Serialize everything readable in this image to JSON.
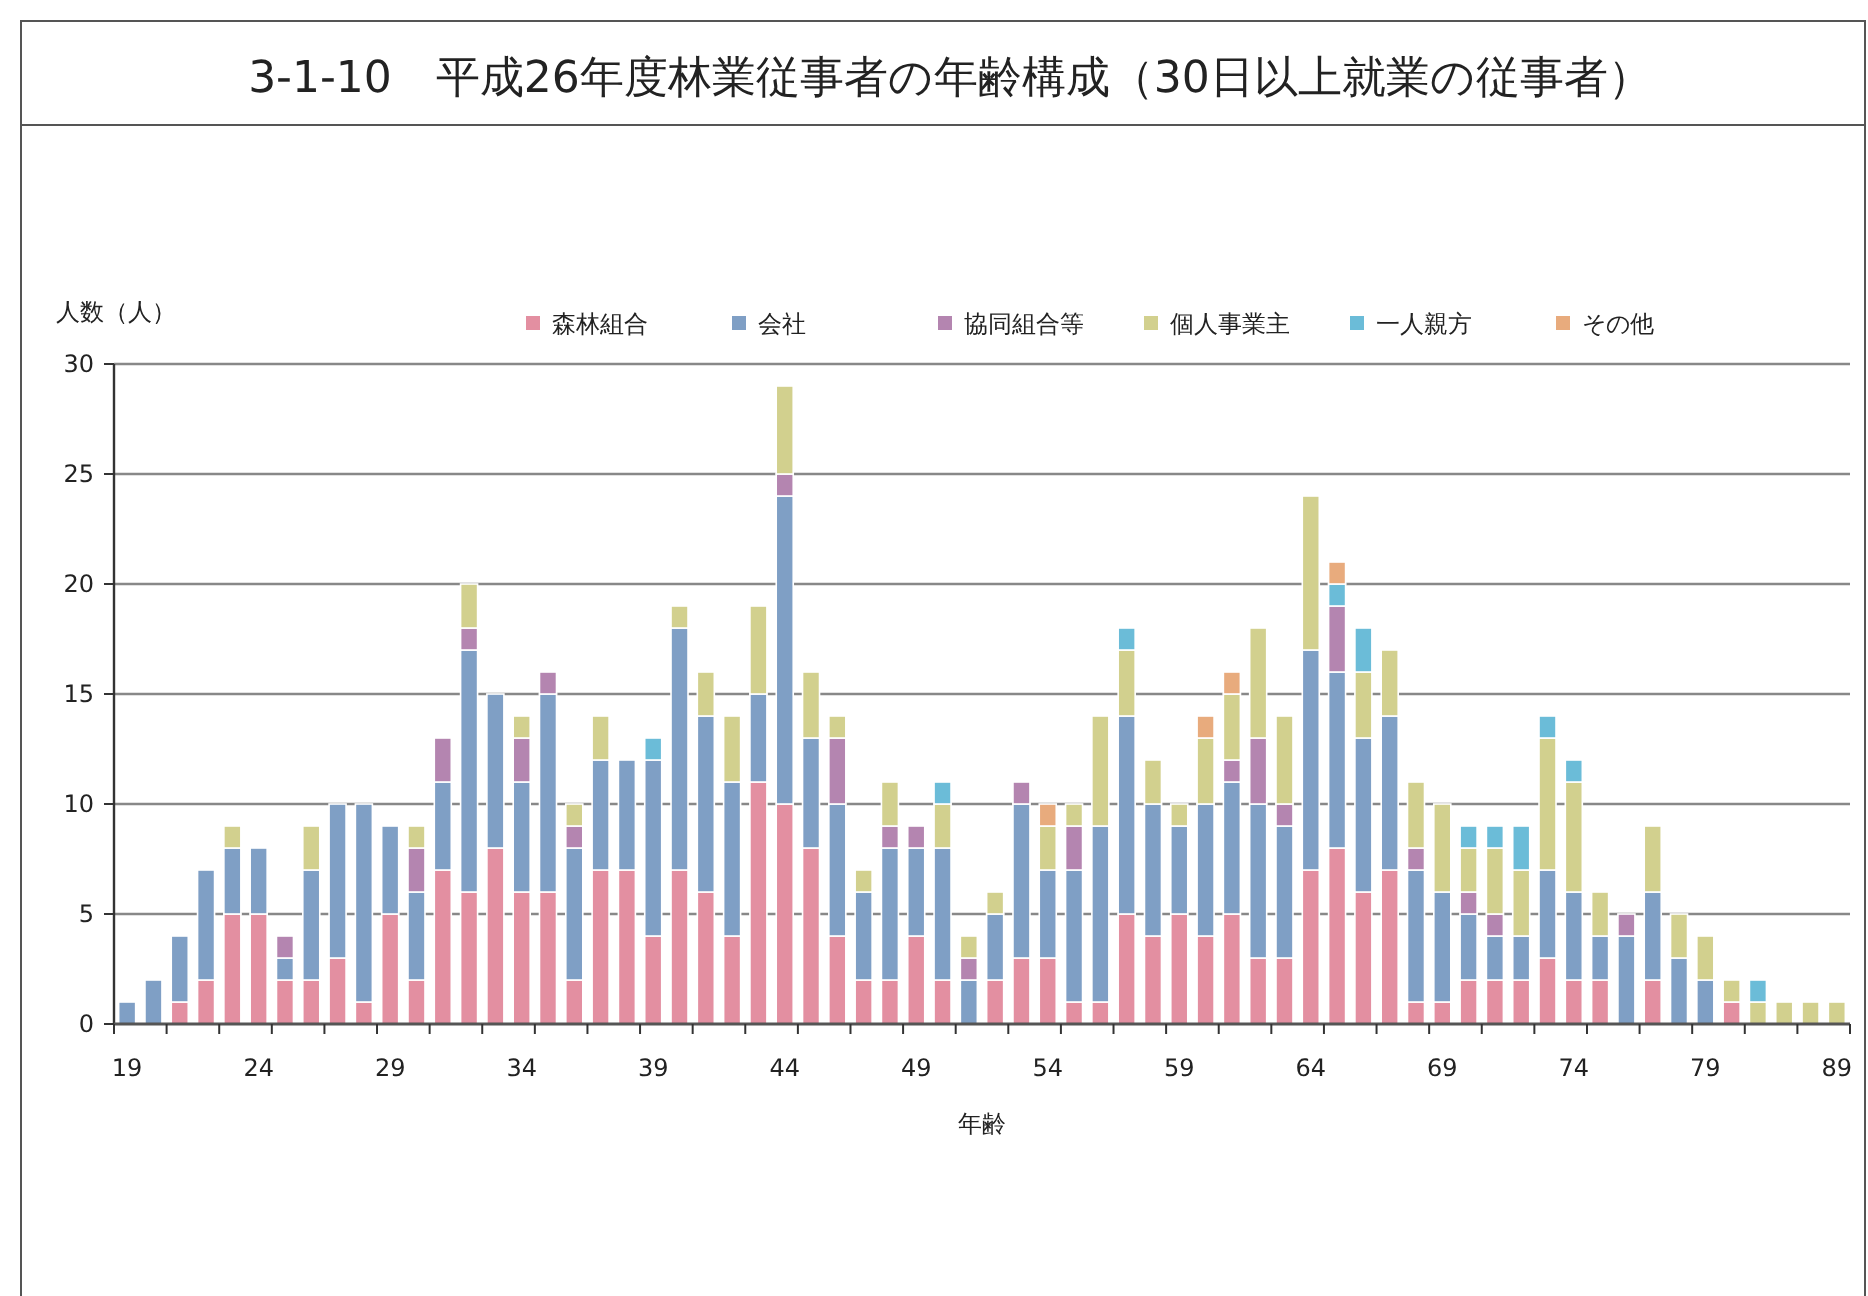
{
  "chart_data": {
    "type": "bar",
    "stacked": true,
    "title": "3-1-10　平成26年度林業従事者の年齢構成（30日以上就業の従事者）",
    "ylabel": "人数（人）",
    "xlabel": "年齢",
    "categories": [
      "19",
      null,
      null,
      null,
      null,
      "24",
      null,
      null,
      null,
      null,
      "29",
      null,
      null,
      null,
      null,
      "34",
      null,
      null,
      null,
      null,
      "39",
      null,
      null,
      null,
      null,
      "44",
      null,
      null,
      null,
      null,
      "49",
      null,
      null,
      null,
      null,
      "54",
      null,
      null,
      null,
      null,
      "59",
      null,
      null,
      null,
      null,
      "64",
      null,
      null,
      null,
      null,
      "69",
      null,
      null,
      null,
      null,
      "74",
      null,
      null,
      null,
      null,
      "79",
      null,
      null,
      null,
      null,
      "89"
    ],
    "ylim": [
      0,
      30
    ],
    "yticks": [
      0,
      5,
      10,
      15,
      20,
      25,
      30
    ],
    "grid": "y",
    "legend": "top",
    "series": [
      {
        "name": "森林組合",
        "color": "#e38fa1",
        "values": [
          0,
          0,
          1,
          2,
          5,
          5,
          2,
          2,
          3,
          1,
          5,
          2,
          7,
          6,
          8,
          6,
          6,
          2,
          7,
          7,
          4,
          7,
          6,
          4,
          11,
          10,
          8,
          4,
          2,
          2,
          4,
          2,
          0,
          2,
          3,
          3,
          1,
          1,
          5,
          4,
          5,
          4,
          5,
          3,
          3,
          7,
          8,
          6,
          7,
          1,
          1,
          2,
          2,
          2,
          3,
          2,
          2,
          0,
          2,
          0,
          0,
          1,
          0,
          0,
          0,
          0
        ]
      },
      {
        "name": "会社",
        "color": "#7f9fc5",
        "values": [
          1,
          2,
          3,
          5,
          3,
          3,
          1,
          5,
          7,
          9,
          4,
          4,
          4,
          11,
          7,
          5,
          9,
          6,
          5,
          5,
          8,
          11,
          8,
          7,
          4,
          14,
          5,
          6,
          4,
          6,
          4,
          6,
          2,
          3,
          7,
          4,
          6,
          8,
          9,
          6,
          4,
          6,
          6,
          7,
          6,
          10,
          8,
          7,
          7,
          6,
          5,
          3,
          2,
          2,
          4,
          4,
          2,
          4,
          4,
          3,
          2,
          0,
          0,
          0,
          0,
          0
        ]
      },
      {
        "name": "協同組合等",
        "color": "#b485b0",
        "values": [
          0,
          0,
          0,
          0,
          0,
          0,
          1,
          0,
          0,
          0,
          0,
          2,
          2,
          1,
          0,
          2,
          1,
          1,
          0,
          0,
          0,
          0,
          0,
          0,
          0,
          1,
          0,
          3,
          0,
          1,
          1,
          0,
          1,
          0,
          1,
          0,
          2,
          0,
          0,
          0,
          0,
          0,
          1,
          3,
          1,
          0,
          3,
          0,
          0,
          1,
          0,
          1,
          1,
          0,
          0,
          0,
          0,
          1,
          0,
          0,
          0,
          0,
          0,
          0,
          0,
          0
        ]
      },
      {
        "name": "個人事業主",
        "color": "#d2d08e",
        "values": [
          0,
          0,
          0,
          0,
          1,
          0,
          0,
          2,
          0,
          0,
          0,
          1,
          0,
          2,
          0,
          1,
          0,
          1,
          2,
          0,
          0,
          1,
          2,
          3,
          4,
          4,
          3,
          1,
          1,
          2,
          0,
          2,
          1,
          1,
          0,
          2,
          1,
          5,
          3,
          2,
          1,
          3,
          3,
          5,
          4,
          7,
          0,
          3,
          3,
          3,
          4,
          2,
          3,
          3,
          6,
          5,
          2,
          0,
          3,
          2,
          2,
          1,
          1,
          1,
          1,
          1
        ]
      },
      {
        "name": "一人親方",
        "color": "#6bbcd8",
        "values": [
          0,
          0,
          0,
          0,
          0,
          0,
          0,
          0,
          0,
          0,
          0,
          0,
          0,
          0,
          0,
          0,
          0,
          0,
          0,
          0,
          1,
          0,
          0,
          0,
          0,
          0,
          0,
          0,
          0,
          0,
          0,
          1,
          0,
          0,
          0,
          0,
          0,
          0,
          1,
          0,
          0,
          0,
          0,
          0,
          0,
          0,
          1,
          2,
          0,
          0,
          0,
          1,
          1,
          2,
          1,
          1,
          0,
          0,
          0,
          0,
          0,
          0,
          1,
          0,
          0,
          0
        ]
      },
      {
        "name": "その他",
        "color": "#e8ab7d",
        "values": [
          0,
          0,
          0,
          0,
          0,
          0,
          0,
          0,
          0,
          0,
          0,
          0,
          0,
          0,
          0,
          0,
          0,
          0,
          0,
          0,
          0,
          0,
          0,
          0,
          0,
          0,
          0,
          0,
          0,
          0,
          0,
          0,
          0,
          0,
          0,
          1,
          0,
          0,
          0,
          0,
          0,
          1,
          1,
          0,
          0,
          0,
          1,
          0,
          0,
          0,
          0,
          0,
          0,
          0,
          0,
          0,
          0,
          0,
          0,
          0,
          0,
          0,
          0,
          0,
          0,
          0
        ]
      }
    ]
  }
}
